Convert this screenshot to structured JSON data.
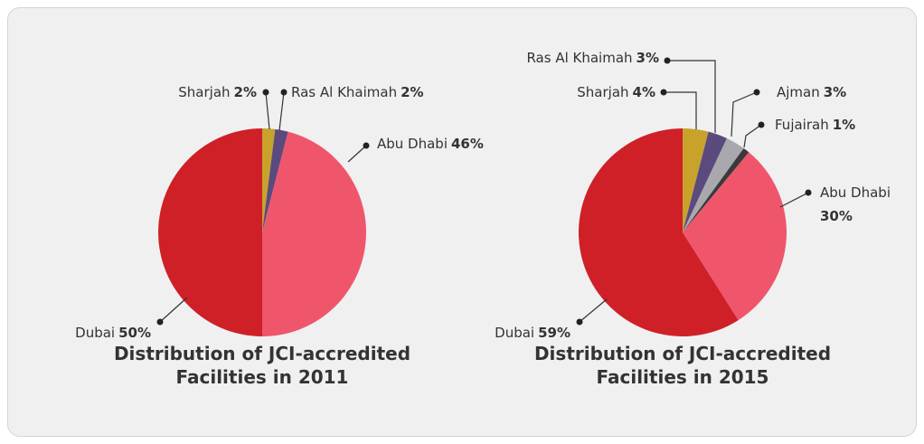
{
  "chart_data": [
    {
      "type": "pie",
      "title": "Distribution of JCI-accredited Facilities in 2011",
      "categories": [
        "Sharjah",
        "Ras Al Khaimah",
        "Abu Dhabi",
        "Dubai"
      ],
      "values": [
        2,
        2,
        46,
        50
      ],
      "value_labels": [
        "2%",
        "2%",
        "46%",
        "50%"
      ],
      "colors": [
        "#c9a22b",
        "#5a4a7e",
        "#ef566c",
        "#cf2027"
      ]
    },
    {
      "type": "pie",
      "title": "Distribution of JCI-accredited Facilities in 2015",
      "categories": [
        "Sharjah",
        "Ras Al Khaimah",
        "Ajman",
        "Fujairah",
        "Abu Dhabi",
        "Dubai"
      ],
      "values": [
        4,
        3,
        3,
        1,
        30,
        59
      ],
      "value_labels": [
        "4%",
        "3%",
        "3%",
        "1%",
        "30%",
        "59%"
      ],
      "colors": [
        "#c9a22b",
        "#5a4a7e",
        "#a8a8ad",
        "#3a3a3c",
        "#ef566c",
        "#cf2027"
      ]
    }
  ]
}
